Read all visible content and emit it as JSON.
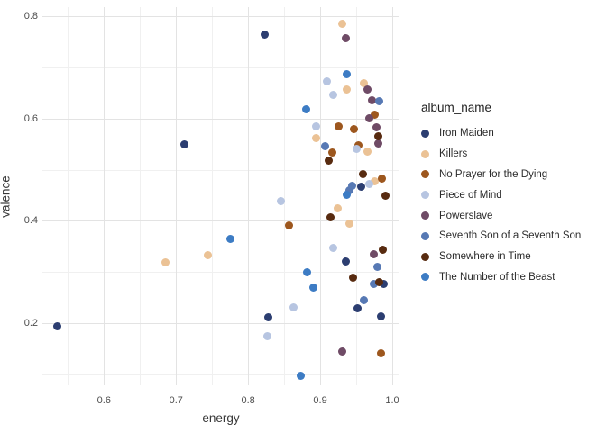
{
  "figure": {
    "xlabel": "energy",
    "ylabel": "valence",
    "legend_title": "album_name"
  },
  "chart_data": {
    "type": "scatter",
    "title": "",
    "xlabel": "energy",
    "ylabel": "valence",
    "xlim": [
      0.5145,
      1.01
    ],
    "ylim": [
      0.078,
      0.818
    ],
    "x_ticks": [
      0.6,
      0.7,
      0.8,
      0.9,
      1.0
    ],
    "x_minor_ticks": [
      0.55,
      0.65,
      0.75,
      0.85,
      0.95
    ],
    "y_ticks": [
      0.2,
      0.4,
      0.6,
      0.8
    ],
    "y_minor_ticks": [
      0.1,
      0.3,
      0.5,
      0.7
    ],
    "grid": true,
    "legend_title": "album_name",
    "legend_position": "right",
    "series": [
      {
        "name": "Iron Maiden",
        "color": "#2c3e71",
        "points": [
          [
            0.535,
            0.193
          ],
          [
            0.712,
            0.55
          ],
          [
            0.823,
            0.765
          ],
          [
            0.828,
            0.211
          ],
          [
            0.935,
            0.321
          ],
          [
            0.952,
            0.229
          ],
          [
            0.957,
            0.466
          ],
          [
            0.984,
            0.213
          ],
          [
            0.988,
            0.277
          ]
        ]
      },
      {
        "name": "Killers",
        "color": "#ebc295",
        "points": [
          [
            0.685,
            0.318
          ],
          [
            0.744,
            0.333
          ],
          [
            0.894,
            0.562
          ],
          [
            0.924,
            0.425
          ],
          [
            0.931,
            0.785
          ],
          [
            0.937,
            0.656
          ],
          [
            0.94,
            0.395
          ],
          [
            0.96,
            0.67
          ],
          [
            0.966,
            0.536
          ],
          [
            0.976,
            0.478
          ]
        ]
      },
      {
        "name": "No Prayer for the Dying",
        "color": "#9d571e",
        "points": [
          [
            0.857,
            0.39
          ],
          [
            0.917,
            0.534
          ],
          [
            0.926,
            0.584
          ],
          [
            0.947,
            0.58
          ],
          [
            0.953,
            0.547
          ],
          [
            0.975,
            0.608
          ],
          [
            0.985,
            0.483
          ],
          [
            0.984,
            0.141
          ]
        ]
      },
      {
        "name": "Piece of Mind",
        "color": "#b7c5e1",
        "points": [
          [
            0.827,
            0.174
          ],
          [
            0.845,
            0.439
          ],
          [
            0.863,
            0.231
          ],
          [
            0.894,
            0.585
          ],
          [
            0.909,
            0.672
          ],
          [
            0.918,
            0.647
          ],
          [
            0.918,
            0.346
          ],
          [
            0.95,
            0.54
          ],
          [
            0.968,
            0.472
          ]
        ]
      },
      {
        "name": "Powerslave",
        "color": "#6f4b66",
        "points": [
          [
            0.931,
            0.145
          ],
          [
            0.936,
            0.757
          ],
          [
            0.965,
            0.657
          ],
          [
            0.968,
            0.601
          ],
          [
            0.972,
            0.635
          ],
          [
            0.974,
            0.335
          ],
          [
            0.978,
            0.582
          ],
          [
            0.98,
            0.551
          ]
        ]
      },
      {
        "name": "Seventh Son of a Seventh Son",
        "color": "#5779b4",
        "points": [
          [
            0.907,
            0.545
          ],
          [
            0.94,
            0.46
          ],
          [
            0.944,
            0.469
          ],
          [
            0.961,
            0.245
          ],
          [
            0.974,
            0.277
          ],
          [
            0.979,
            0.31
          ],
          [
            0.982,
            0.634
          ]
        ]
      },
      {
        "name": "Somewhere in Time",
        "color": "#582b10",
        "points": [
          [
            0.912,
            0.518
          ],
          [
            0.914,
            0.407
          ],
          [
            0.945,
            0.289
          ],
          [
            0.959,
            0.492
          ],
          [
            0.98,
            0.566
          ],
          [
            0.982,
            0.279
          ],
          [
            0.987,
            0.344
          ],
          [
            0.991,
            0.449
          ]
        ]
      },
      {
        "name": "The Number of the Beast",
        "color": "#3d7cc4",
        "points": [
          [
            0.775,
            0.365
          ],
          [
            0.873,
            0.097
          ],
          [
            0.88,
            0.618
          ],
          [
            0.882,
            0.3
          ],
          [
            0.89,
            0.27
          ],
          [
            0.937,
            0.686
          ],
          [
            0.937,
            0.45
          ]
        ]
      }
    ]
  }
}
